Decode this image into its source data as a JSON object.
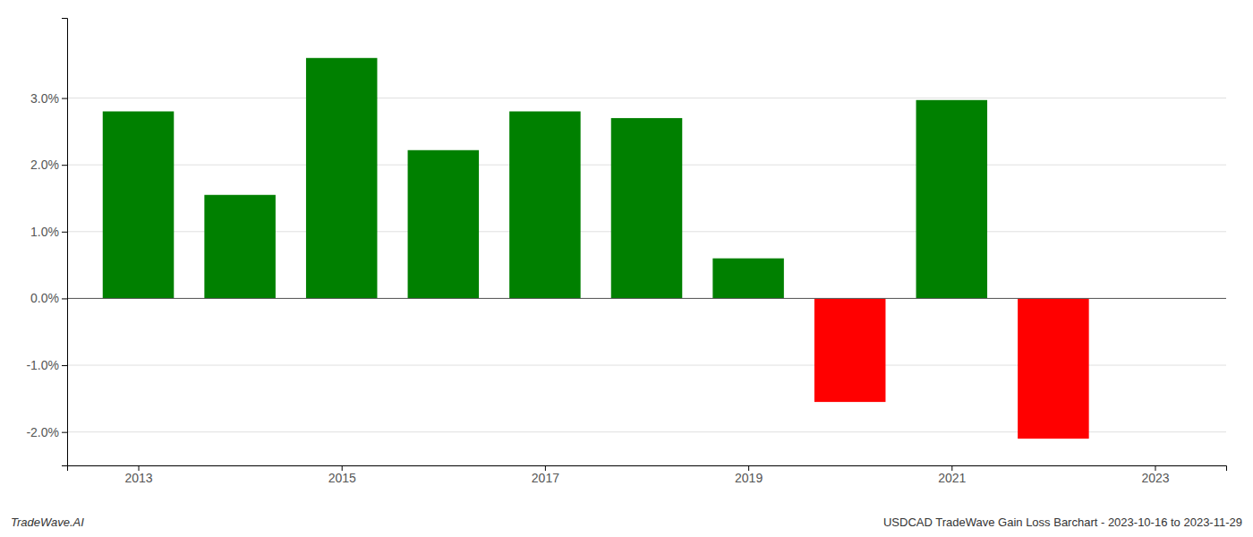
{
  "chart_data": {
    "type": "bar",
    "x": [
      2013,
      2014,
      2015,
      2016,
      2017,
      2018,
      2019,
      2020,
      2021,
      2022
    ],
    "values": [
      0.028,
      0.0155,
      0.036,
      0.0222,
      0.028,
      0.027,
      0.006,
      -0.0155,
      0.0297,
      -0.021
    ],
    "colors": [
      "#008000",
      "#008000",
      "#008000",
      "#008000",
      "#008000",
      "#008000",
      "#008000",
      "#ff0000",
      "#008000",
      "#ff0000"
    ],
    "xlim": [
      2012.3,
      2023.7
    ],
    "xticks": [
      2013,
      2015,
      2017,
      2019,
      2021,
      2023
    ],
    "ylim": [
      -0.025,
      0.042
    ],
    "yticks": [
      {
        "value": -0.02,
        "label": "-2.0%"
      },
      {
        "value": -0.01,
        "label": "-1.0%"
      },
      {
        "value": 0.0,
        "label": "0.0%"
      },
      {
        "value": 0.01,
        "label": "1.0%"
      },
      {
        "value": 0.02,
        "label": "2.0%"
      },
      {
        "value": 0.03,
        "label": "3.0%"
      }
    ],
    "grid": true,
    "annotations": [
      "TradeWave.AI",
      "USDCAD TradeWave Gain Loss Barchart - 2023-10-16 to 2023-11-29"
    ]
  }
}
